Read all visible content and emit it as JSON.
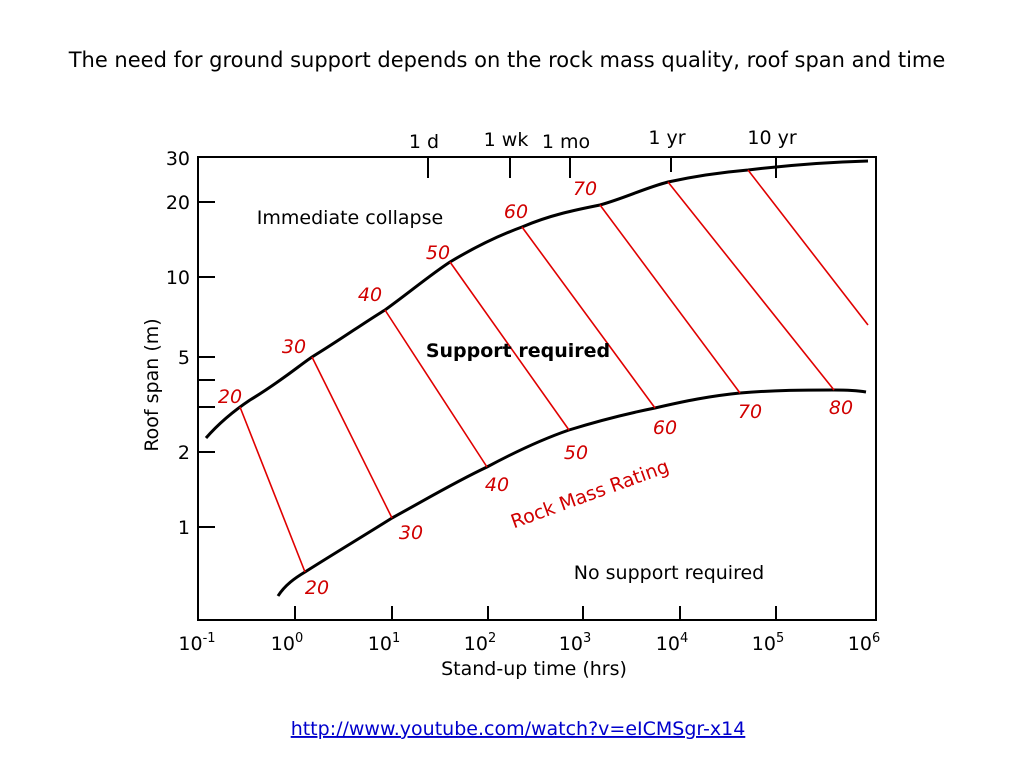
{
  "title": "The need for ground support depends on the rock mass quality, roof span and time",
  "chart": {
    "y_axis_label": "Roof span (m)",
    "x_axis_label": "Stand-up time (hrs)",
    "y_tick_labels": [
      "30",
      "20",
      "10",
      "5",
      "2",
      "1"
    ],
    "x_tick_labels": [
      {
        "base": "10",
        "exp": "-1"
      },
      {
        "base": "10",
        "exp": "0"
      },
      {
        "base": "10",
        "exp": "1"
      },
      {
        "base": "10",
        "exp": "2"
      },
      {
        "base": "10",
        "exp": "3"
      },
      {
        "base": "10",
        "exp": "4"
      },
      {
        "base": "10",
        "exp": "5"
      },
      {
        "base": "10",
        "exp": "6"
      }
    ],
    "time_labels": [
      "1 d",
      "1 wk",
      "1 mo",
      "1 yr",
      "10 yr"
    ],
    "regions": [
      "Immediate collapse",
      "Support required",
      "No support required"
    ],
    "rmr_title": "Rock Mass Rating",
    "rmr_upper_labels": [
      "20",
      "30",
      "40",
      "50",
      "60",
      "70"
    ],
    "rmr_lower_labels": [
      "20",
      "30",
      "40",
      "50",
      "60",
      "70",
      "80"
    ]
  },
  "link": "http://www.youtube.com/watch?v=eICMSgr-x14"
}
